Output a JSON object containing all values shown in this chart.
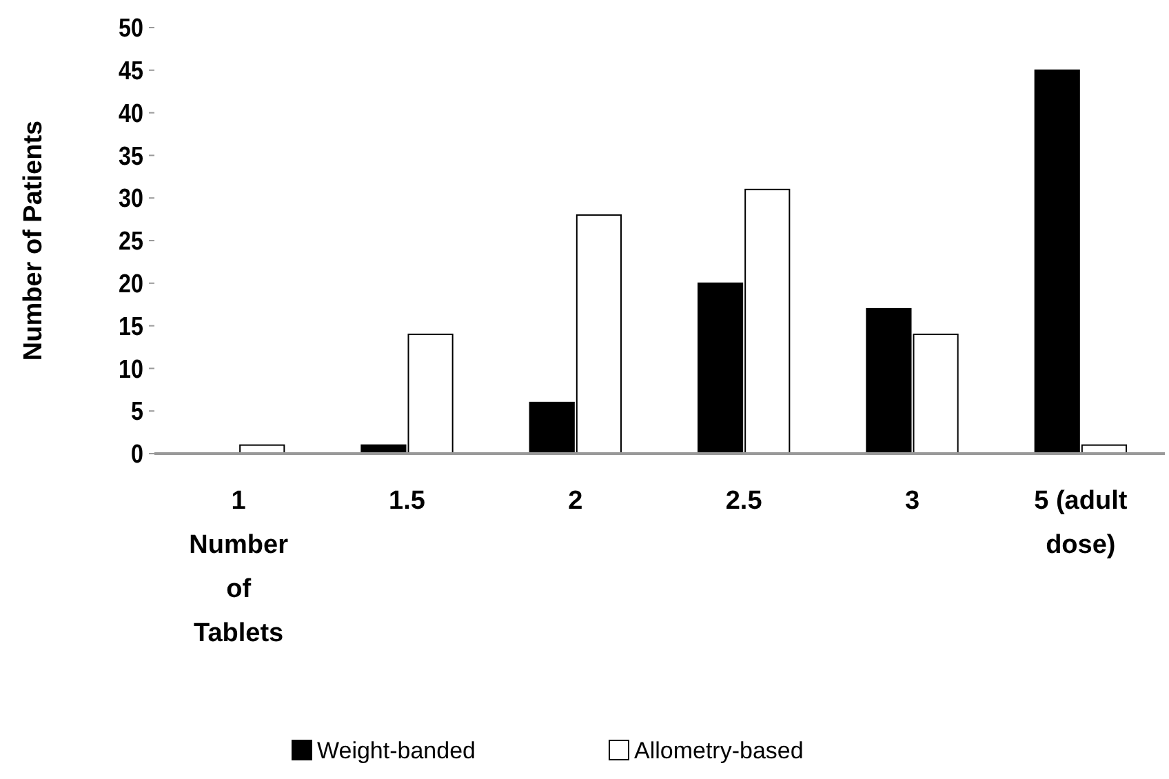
{
  "chart_data": {
    "type": "bar",
    "xlabel": "Number of Tablets",
    "ylabel": "Number of Patients",
    "categories": [
      "1",
      "1.5",
      "2",
      "2.5",
      "3",
      "5 (adult dose)"
    ],
    "series": [
      {
        "name": "Weight-banded",
        "color": "#000000",
        "values": [
          0,
          1,
          6,
          20,
          17,
          45
        ]
      },
      {
        "name": "Allometry-based",
        "color": "#ffffff",
        "values": [
          1,
          14,
          28,
          31,
          14,
          1
        ]
      }
    ],
    "ylim": [
      0,
      50
    ],
    "yticks": [
      0,
      5,
      10,
      15,
      20,
      25,
      30,
      35,
      40,
      45,
      50
    ],
    "grid": false,
    "legend": "bottom"
  }
}
